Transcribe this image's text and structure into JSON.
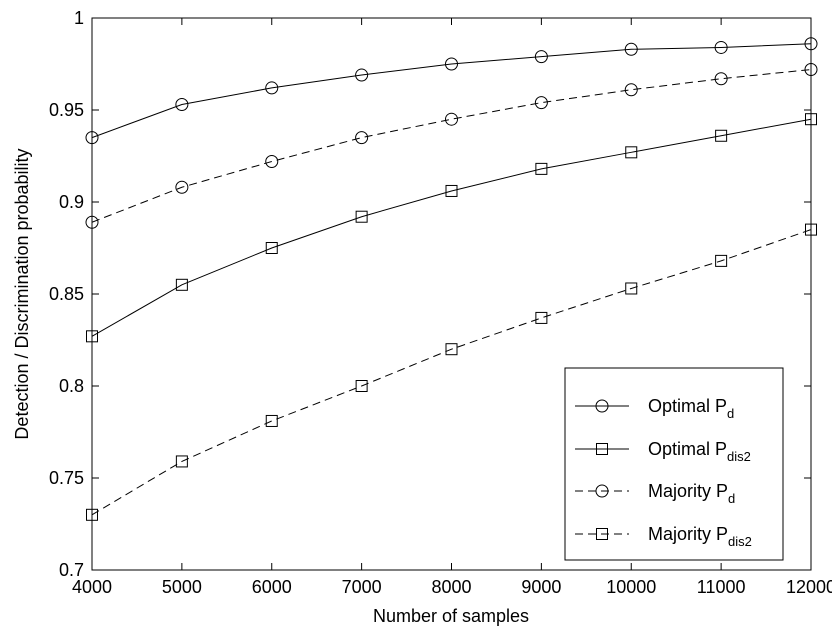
{
  "chart_data": {
    "type": "line",
    "title": "",
    "xlabel": "Number of samples",
    "ylabel": "Detection / Discrimination probability",
    "xlim": [
      4000,
      12000
    ],
    "ylim": [
      0.7,
      1.0
    ],
    "xticks": [
      4000,
      5000,
      6000,
      7000,
      8000,
      9000,
      10000,
      11000,
      12000
    ],
    "xtick_labels": [
      "4000",
      "5000",
      "6000",
      "7000",
      "8000",
      "9000",
      "10000",
      "11000",
      "12000"
    ],
    "yticks": [
      0.7,
      0.75,
      0.8,
      0.85,
      0.9,
      0.95,
      1.0
    ],
    "ytick_labels": [
      "0.7",
      "0.75",
      "0.8",
      "0.85",
      "0.9",
      "0.95",
      "1"
    ],
    "grid": false,
    "legend_position": "bottom-right",
    "x": [
      4000,
      5000,
      6000,
      7000,
      8000,
      9000,
      10000,
      11000,
      12000
    ],
    "series": [
      {
        "name": "Optimal Pd",
        "label_main": "Optimal P",
        "label_sub": "d",
        "line_style": "solid",
        "marker": "circle",
        "values": [
          0.935,
          0.953,
          0.962,
          0.969,
          0.975,
          0.979,
          0.983,
          0.984,
          0.986
        ]
      },
      {
        "name": "Optimal Pdis2",
        "label_main": "Optimal P",
        "label_sub": "dis2",
        "line_style": "solid",
        "marker": "square",
        "values": [
          0.827,
          0.855,
          0.875,
          0.892,
          0.906,
          0.918,
          0.927,
          0.936,
          0.945
        ]
      },
      {
        "name": "Majority Pd",
        "label_main": "Majority P",
        "label_sub": "d",
        "line_style": "dashed",
        "marker": "circle",
        "values": [
          0.889,
          0.908,
          0.922,
          0.935,
          0.945,
          0.954,
          0.961,
          0.967,
          0.972
        ]
      },
      {
        "name": "Majority Pdis2",
        "label_main": "Majority P",
        "label_sub": "dis2",
        "line_style": "dashed",
        "marker": "square",
        "values": [
          0.73,
          0.759,
          0.781,
          0.8,
          0.82,
          0.837,
          0.853,
          0.868,
          0.885
        ]
      }
    ],
    "colors": {
      "line": "#000000",
      "background": "#ffffff"
    }
  }
}
